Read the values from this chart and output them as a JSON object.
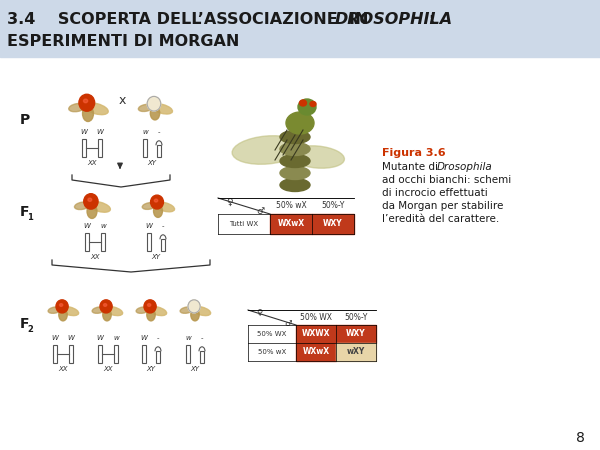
{
  "header_bg": "#cdd9e8",
  "page_bg": "#ffffff",
  "title1_normal": "3.4    SCOPERTA DELL’ASSOCIAZIONE  IN ",
  "title1_italic": "DROSOPHILA",
  "title1_end": ":",
  "title2": "ESPERIMENTI DI MORGAN",
  "title_color": "#1a1a1a",
  "title_fontsize": 11.5,
  "p_label": "P",
  "f1_label": "F",
  "f2_label": "F",
  "figura_label": "Figura 3.6",
  "figura_color": "#cc3300",
  "figura_lines": [
    "Mutante di ",
    "ad occhi bianchi: schemi",
    "di incrocio effettuati",
    "da Morgan per stabilire",
    "l’eredità del carattere."
  ],
  "figura_italic": "Drosophila",
  "table1_col1": "50% wX",
  "table1_col2": "50%-Y",
  "table1_row1": "Tutti WX",
  "table1_c11": "WXwX",
  "table1_c12": "WXY",
  "table2_col1": "50% WX",
  "table2_col2": "50%-Y",
  "table2_row1": "50% WX",
  "table2_row2": "50% wX",
  "table2_c11": "WXWX",
  "table2_c12": "WXY",
  "table2_c21": "WXwX",
  "table2_c22": "wXY",
  "orange": "#c0391b",
  "cream": "#e8d5a8",
  "white": "#ffffff",
  "black": "#000000",
  "gray": "#555555",
  "page_num": "8",
  "eye_red": "#cc3300",
  "eye_white": "#f0e8d0",
  "wing_color": "#d4b870",
  "wing_dark": "#b89850",
  "fly_body": "#8a7a40",
  "fly_wing": "#b8b880",
  "fly_head": "#6a8a30"
}
